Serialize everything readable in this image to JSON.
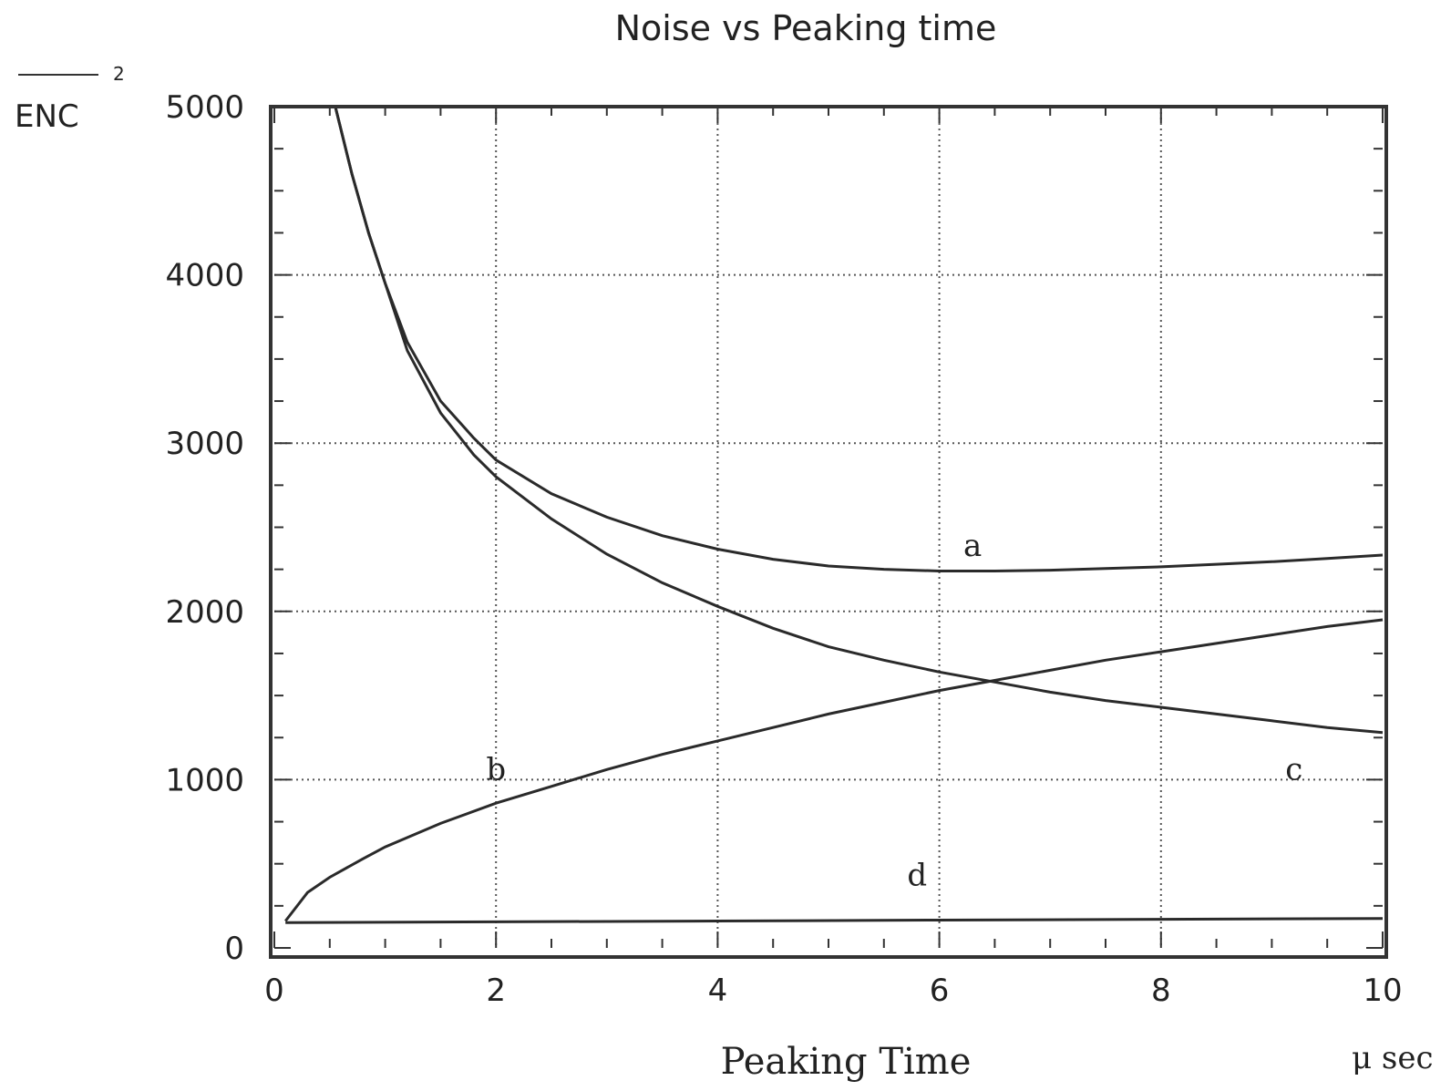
{
  "chart_data": {
    "type": "line",
    "title": "Noise vs Peaking time",
    "xlabel": "Peaking Time",
    "x_unit": "μ sec",
    "ylabel": "ENC",
    "ylabel_superscript": "2",
    "xlim": [
      0,
      10
    ],
    "ylim": [
      0,
      5000
    ],
    "x_ticks": [
      0,
      2,
      4,
      6,
      8,
      10
    ],
    "y_ticks": [
      0,
      1000,
      2000,
      3000,
      4000,
      5000
    ],
    "x_tick_labels": [
      "0",
      "2",
      "4",
      "6",
      "8",
      "10"
    ],
    "y_tick_labels": [
      "0",
      "1000",
      "2000",
      "3000",
      "4000",
      "5000"
    ],
    "grid": true,
    "series": [
      {
        "name": "a",
        "x": [
          0.55,
          0.7,
          0.85,
          1.0,
          1.2,
          1.5,
          1.8,
          2.0,
          2.5,
          3.0,
          3.5,
          4.0,
          4.5,
          5.0,
          5.5,
          6.0,
          6.5,
          7.0,
          7.5,
          8.0,
          8.5,
          9.0,
          9.5,
          10.0
        ],
        "y": [
          5000,
          4600,
          4250,
          3950,
          3600,
          3250,
          3030,
          2900,
          2700,
          2560,
          2450,
          2370,
          2310,
          2270,
          2250,
          2240,
          2240,
          2245,
          2255,
          2265,
          2280,
          2295,
          2315,
          2335
        ]
      },
      {
        "name": "b",
        "x": [
          0.1,
          0.3,
          0.5,
          0.8,
          1.0,
          1.5,
          2.0,
          2.5,
          3.0,
          3.5,
          4.0,
          4.5,
          5.0,
          5.5,
          6.0,
          6.5,
          7.0,
          7.5,
          8.0,
          8.5,
          9.0,
          9.5,
          10.0
        ],
        "y": [
          160,
          330,
          420,
          530,
          600,
          740,
          860,
          960,
          1060,
          1150,
          1230,
          1310,
          1390,
          1460,
          1530,
          1590,
          1650,
          1710,
          1760,
          1810,
          1860,
          1910,
          1950
        ]
      },
      {
        "name": "c",
        "x": [
          0.55,
          0.7,
          0.85,
          1.0,
          1.2,
          1.5,
          1.8,
          2.0,
          2.5,
          3.0,
          3.5,
          4.0,
          4.5,
          5.0,
          5.5,
          6.0,
          6.5,
          7.0,
          7.5,
          8.0,
          8.5,
          9.0,
          9.5,
          10.0
        ],
        "y": [
          5000,
          4600,
          4250,
          3950,
          3550,
          3180,
          2930,
          2800,
          2550,
          2340,
          2170,
          2030,
          1900,
          1790,
          1710,
          1640,
          1580,
          1520,
          1470,
          1430,
          1390,
          1350,
          1310,
          1280
        ]
      },
      {
        "name": "d",
        "x": [
          0.1,
          2.0,
          4.0,
          6.0,
          8.0,
          10.0
        ],
        "y": [
          150,
          155,
          160,
          165,
          170,
          175
        ]
      }
    ],
    "curve_labels": [
      {
        "text": "a",
        "x": 6.3,
        "y": 2330
      },
      {
        "text": "b",
        "x": 2.0,
        "y": 1000
      },
      {
        "text": "c",
        "x": 9.2,
        "y": 1000
      },
      {
        "text": "d",
        "x": 5.8,
        "y": 370
      }
    ]
  }
}
